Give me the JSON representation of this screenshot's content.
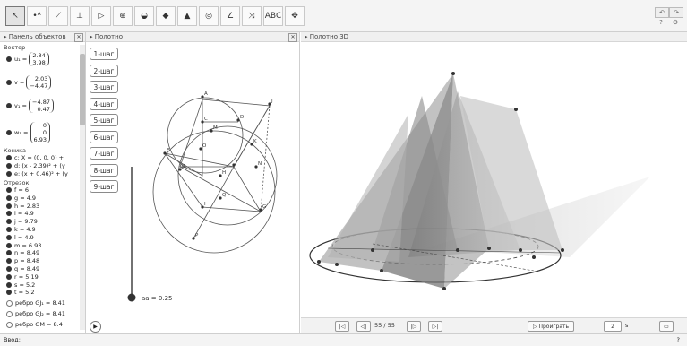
{
  "toolbar": {
    "tools": [
      {
        "icon": "pointer-icon",
        "glyph": "↖",
        "active": true
      },
      {
        "icon": "point-icon",
        "glyph": "•ᴬ"
      },
      {
        "icon": "line-icon",
        "glyph": "⟋"
      },
      {
        "icon": "perpendicular-icon",
        "glyph": "⊥"
      },
      {
        "icon": "polygon-icon",
        "glyph": "▷"
      },
      {
        "icon": "circle-icon",
        "glyph": "⊕"
      },
      {
        "icon": "sphere-icon",
        "glyph": "◒"
      },
      {
        "icon": "plane-icon",
        "glyph": "◆"
      },
      {
        "icon": "pyramid-icon",
        "glyph": "▲"
      },
      {
        "icon": "circle-point-icon",
        "glyph": "◎"
      },
      {
        "icon": "angle-icon",
        "glyph": "∠"
      },
      {
        "icon": "reflect-icon",
        "glyph": "⤨"
      },
      {
        "icon": "text-icon",
        "glyph": "ABC"
      },
      {
        "icon": "move-view-icon",
        "glyph": "✥"
      }
    ],
    "window_undo": "↶",
    "window_redo": "↷",
    "help": "?",
    "settings": "⚙"
  },
  "algebra": {
    "title": "Панель объектов",
    "categories": {
      "vector": "Вектор",
      "conic": "Коника",
      "segment": "Отрезок"
    },
    "vectors": [
      {
        "name": "u₁",
        "values": [
          "2.84",
          "3.98"
        ]
      },
      {
        "name": "v",
        "values": [
          "2.03",
          "−4.47"
        ]
      },
      {
        "name": "v₁",
        "values": [
          "−4.87",
          "0.47"
        ]
      },
      {
        "name": "w₁",
        "values": [
          "0",
          "0",
          "6.93"
        ]
      }
    ],
    "conics": [
      "c: X = (0, 0, 0) +",
      "d: (x - 2.39)² + (y",
      "e: (x + 0.46)² + (y"
    ],
    "segments": [
      "f = 6",
      "g = 4.9",
      "h = 2.83",
      "i = 4.9",
      "j = 9.79",
      "k = 4.9",
      "l = 4.9",
      "m = 6.93",
      "n = 8.49",
      "p = 8.48",
      "q = 8.49",
      "r = 5.19",
      "s = 5.2",
      "t = 5.2"
    ],
    "extra": [
      "ребро GJ₁ = 8.41",
      "ребро GJ₂ = 8.41",
      "ребро GM = 8.4"
    ]
  },
  "canvas2d": {
    "title": "Полотно",
    "steps": [
      "1-шаг",
      "2-шаг",
      "3-шаг",
      "4-шаг",
      "5-шаг",
      "6-шаг",
      "7-шаг",
      "8-шаг",
      "9-шаг"
    ],
    "slider_label": "aa = 0.25",
    "slider_value": 0.25,
    "point_labels": [
      "A",
      "B",
      "C",
      "D",
      "E",
      "F",
      "G",
      "H",
      "I",
      "J",
      "K",
      "M",
      "N",
      "O",
      "P",
      "Q"
    ],
    "play_glyph": "▶"
  },
  "canvas3d": {
    "title": "Полотно 3D",
    "anim": {
      "first": "|◁",
      "prev": "◁|",
      "counter": "55 / 55",
      "next": "|▷",
      "last": "▷|",
      "play": "▷ Проиграть",
      "speed": "2",
      "unit": "s"
    }
  },
  "statusbar": {
    "input_label": "Ввод:",
    "help": "?"
  }
}
